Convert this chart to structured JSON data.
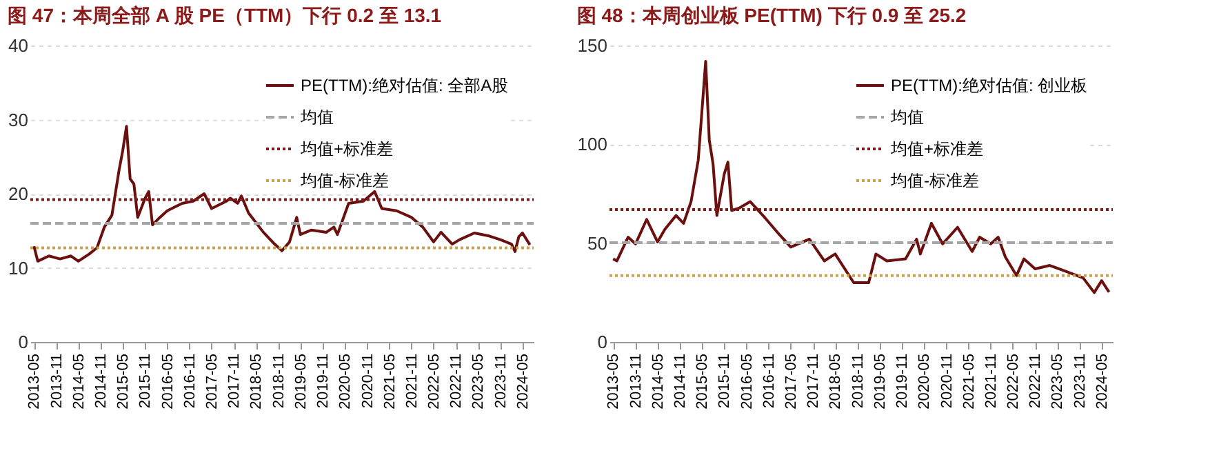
{
  "chart_data": [
    {
      "type": "line",
      "title": "图 47：本周全部 A 股 PE（TTM）下行 0.2 至 13.1",
      "legend": "top right",
      "grid": "y",
      "line_style": "solid",
      "marker": "none",
      "xlim": [
        "2013-04",
        "2024-08"
      ],
      "xticks": [
        "2013-05",
        "2013-11",
        "2014-05",
        "2014-11",
        "2015-05",
        "2015-11",
        "2016-05",
        "2016-11",
        "2017-05",
        "2017-11",
        "2018-05",
        "2018-11",
        "2019-05",
        "2019-11",
        "2020-05",
        "2020-11",
        "2021-05",
        "2021-11",
        "2022-05",
        "2022-11",
        "2023-05",
        "2023-11",
        "2024-05"
      ],
      "ylim": [
        0,
        40
      ],
      "yticks": [
        0,
        10,
        20,
        30,
        40
      ],
      "x": [
        "2013-05",
        "2013-06",
        "2013-09",
        "2013-12",
        "2014-03",
        "2014-05",
        "2014-08",
        "2014-10",
        "2014-12",
        "2015-02",
        "2015-04",
        "2015-05",
        "2015-06",
        "2015-07",
        "2015-08",
        "2015-09",
        "2015-11",
        "2015-12",
        "2016-01",
        "2016-03",
        "2016-05",
        "2016-09",
        "2016-12",
        "2017-03",
        "2017-05",
        "2017-09",
        "2017-10",
        "2017-12",
        "2018-01",
        "2018-03",
        "2018-07",
        "2018-10",
        "2018-12",
        "2019-02",
        "2019-04",
        "2019-05",
        "2019-08",
        "2019-12",
        "2020-02",
        "2020-03",
        "2020-06",
        "2020-10",
        "2021-01",
        "2021-03",
        "2021-07",
        "2021-11",
        "2022-02",
        "2022-05",
        "2022-07",
        "2022-10",
        "2022-12",
        "2023-04",
        "2023-08",
        "2023-11",
        "2024-02",
        "2024-03",
        "2024-04",
        "2024-05",
        "2024-07"
      ],
      "series": [
        {
          "name": "PE(TTM):绝对估值: 全部A股",
          "color": "#6b0f0f",
          "values": [
            12.9,
            10.9,
            11.6,
            11.2,
            11.6,
            10.9,
            11.9,
            12.7,
            15.5,
            17.1,
            23.2,
            25.8,
            29.1,
            22,
            21.3,
            16.8,
            19.4,
            20.3,
            15.8,
            16.8,
            17.7,
            18.7,
            19.0,
            20.0,
            18,
            19,
            19.4,
            18.7,
            19.7,
            17.4,
            14.8,
            13.2,
            12.3,
            13.5,
            16.8,
            14.5,
            15.1,
            14.8,
            15.5,
            14.5,
            18.7,
            19.0,
            20.3,
            18,
            17.7,
            16.8,
            15.5,
            13.5,
            14.8,
            13.2,
            13.8,
            14.7,
            14.3,
            13.8,
            13.2,
            12.2,
            14.2,
            14.7,
            13.1
          ]
        }
      ],
      "ref_lines": [
        {
          "axis": "y",
          "value": 16.0,
          "label": "均值",
          "color": "#a6a6a6",
          "line_style": "dashed"
        },
        {
          "axis": "y",
          "value": 19.2,
          "label": "均值+标准差",
          "color": "#7b1a1a",
          "line_style": "dotted"
        },
        {
          "axis": "y",
          "value": 12.7,
          "label": "均值-标准差",
          "color": "#c9a24a",
          "line_style": "dotted"
        }
      ]
    },
    {
      "type": "line",
      "title": "图 48：本周创业板 PE(TTM) 下行 0.9 至 25.2",
      "legend": "top right",
      "grid": "y",
      "line_style": "solid",
      "marker": "none",
      "xlim": [
        "2013-04",
        "2024-08"
      ],
      "xticks": [
        "2013-05",
        "2013-11",
        "2014-05",
        "2014-11",
        "2015-05",
        "2015-11",
        "2016-05",
        "2016-11",
        "2017-05",
        "2017-11",
        "2018-05",
        "2018-11",
        "2019-05",
        "2019-11",
        "2020-05",
        "2020-11",
        "2021-05",
        "2021-11",
        "2022-05",
        "2022-11",
        "2023-05",
        "2023-11",
        "2024-05"
      ],
      "ylim": [
        0,
        150
      ],
      "yticks": [
        0,
        50,
        100,
        150
      ],
      "x": [
        "2013-05",
        "2013-06",
        "2013-09",
        "2013-11",
        "2014-02",
        "2014-05",
        "2014-07",
        "2014-10",
        "2014-12",
        "2015-02",
        "2015-04",
        "2015-06",
        "2015-07",
        "2015-08",
        "2015-09",
        "2015-11",
        "2015-12",
        "2016-01",
        "2016-03",
        "2016-06",
        "2016-10",
        "2017-02",
        "2017-05",
        "2017-10",
        "2018-02",
        "2018-05",
        "2018-10",
        "2019-02",
        "2019-04",
        "2019-07",
        "2019-12",
        "2020-03",
        "2020-04",
        "2020-07",
        "2020-10",
        "2021-02",
        "2021-06",
        "2021-08",
        "2021-11",
        "2022-01",
        "2022-03",
        "2022-06",
        "2022-08",
        "2022-11",
        "2023-03",
        "2023-07",
        "2023-12",
        "2024-03",
        "2024-05",
        "2024-07"
      ],
      "series": [
        {
          "name": "PE(TTM):绝对估值: 创业板",
          "color": "#6b0f0f",
          "values": [
            42,
            41,
            53,
            49.6,
            62,
            50.6,
            57,
            64,
            60,
            71,
            92,
            142,
            102,
            90,
            64,
            85,
            91,
            66.5,
            67.7,
            71,
            62.8,
            54,
            48,
            52,
            41,
            44.5,
            30,
            30,
            44.5,
            41,
            42,
            52,
            44.5,
            60,
            49.6,
            58,
            45.8,
            53,
            49.6,
            53,
            43,
            33.6,
            42,
            37,
            38.7,
            36,
            32.4,
            25,
            31,
            25.2
          ]
        }
      ],
      "ref_lines": [
        {
          "axis": "y",
          "value": 50.2,
          "label": "均值",
          "color": "#a6a6a6",
          "line_style": "dashed"
        },
        {
          "axis": "y",
          "value": 67,
          "label": "均值+标准差",
          "color": "#7b1a1a",
          "line_style": "dotted"
        },
        {
          "axis": "y",
          "value": 33.6,
          "label": "均值-标准差",
          "color": "#c9a24a",
          "line_style": "dotted"
        }
      ]
    }
  ]
}
